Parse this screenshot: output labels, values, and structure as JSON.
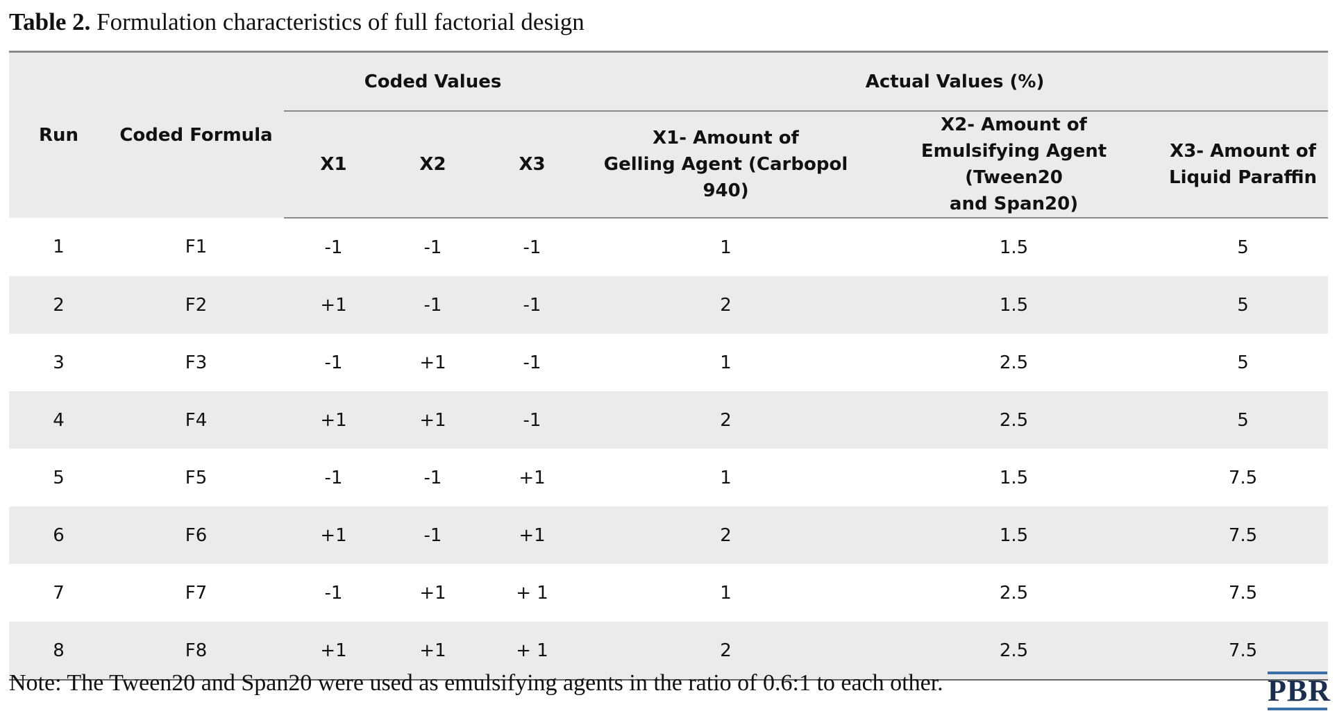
{
  "caption": {
    "label": "Table 2.",
    "text": " Formulation characteristics of full factorial design"
  },
  "table": {
    "headers": {
      "run": "Run",
      "coded_formula": "Coded Formula",
      "coded_values_group": "Coded Values",
      "actual_values_group": "Actual Values (%)",
      "x1": "X1",
      "x2": "X2",
      "x3": "X3",
      "actual_x1_line1": "X1- Amount of",
      "actual_x1_line2": "Gelling Agent (Carbopol 940)",
      "actual_x2_line1": "X2- Amount of",
      "actual_x2_line2": "Emulsifying Agent (Tween20",
      "actual_x2_line3": "and Span20)",
      "actual_x3_line1": "X3- Amount of",
      "actual_x3_line2": "Liquid Paraffin"
    },
    "rows": [
      {
        "run": "1",
        "formula": "F1",
        "x1": "-1",
        "x2": "-1",
        "x3": "-1",
        "a1": "1",
        "a2": "1.5",
        "a3": "5"
      },
      {
        "run": "2",
        "formula": "F2",
        "x1": "+1",
        "x2": "-1",
        "x3": "-1",
        "a1": "2",
        "a2": "1.5",
        "a3": "5"
      },
      {
        "run": "3",
        "formula": "F3",
        "x1": "-1",
        "x2": "+1",
        "x3": "-1",
        "a1": "1",
        "a2": "2.5",
        "a3": "5"
      },
      {
        "run": "4",
        "formula": "F4",
        "x1": "+1",
        "x2": "+1",
        "x3": "-1",
        "a1": "2",
        "a2": "2.5",
        "a3": "5"
      },
      {
        "run": "5",
        "formula": "F5",
        "x1": "-1",
        "x2": "-1",
        "x3": "+1",
        "a1": "1",
        "a2": "1.5",
        "a3": "7.5"
      },
      {
        "run": "6",
        "formula": "F6",
        "x1": "+1",
        "x2": "-1",
        "x3": "+1",
        "a1": "2",
        "a2": "1.5",
        "a3": "7.5"
      },
      {
        "run": "7",
        "formula": "F7",
        "x1": "-1",
        "x2": "+1",
        "x3": "+ 1",
        "a1": "1",
        "a2": "2.5",
        "a3": "7.5"
      },
      {
        "run": "8",
        "formula": "F8",
        "x1": "+1",
        "x2": "+1",
        "x3": "+ 1",
        "a1": "2",
        "a2": "2.5",
        "a3": "7.5"
      }
    ]
  },
  "note": "Note: The Tween20 and Span20 were used as emulsifying agents in the ratio of 0.6:1 to each other.",
  "logo": {
    "text": "PBR",
    "accent_color": "#3a6fa5"
  }
}
